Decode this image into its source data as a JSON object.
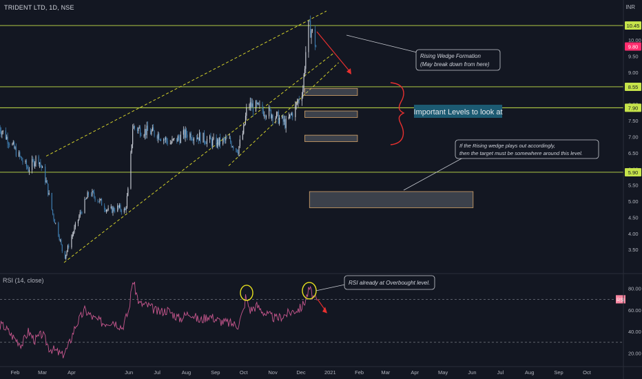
{
  "header": {
    "title": "TRIDENT LTD, 1D, NSE",
    "currency": "INR"
  },
  "chart_data": [
    {
      "type": "candlestick",
      "title": "TRIDENT LTD, 1D, NSE",
      "currency": "INR",
      "ylim": [
        2.8,
        10.9
      ],
      "y_ticks": [
        "3.50",
        "4.00",
        "4.50",
        "5.00",
        "5.50",
        "6.00",
        "6.50",
        "7.00",
        "7.50",
        "8.00",
        "8.50",
        "9.00",
        "9.50",
        "10.00"
      ],
      "x_labels": [
        "Feb",
        "Mar",
        "Apr",
        "Jun",
        "Jul",
        "Aug",
        "Sep",
        "Oct",
        "Nov",
        "Dec",
        "2021",
        "Feb",
        "Mar",
        "Apr",
        "May",
        "Jun",
        "Jul",
        "Aug",
        "Sep",
        "Oct"
      ],
      "price_markers": [
        {
          "label": "10.45",
          "value": 10.45,
          "color": "#c6e34a"
        },
        {
          "label": "9.80",
          "value": 9.8,
          "color": "#ff2d6e"
        },
        {
          "label": "8.55",
          "value": 8.55,
          "color": "#c6e34a"
        },
        {
          "label": "7.90",
          "value": 7.9,
          "color": "#c6e34a"
        },
        {
          "label": "5.90",
          "value": 5.9,
          "color": "#c6e34a"
        }
      ],
      "horizontal_levels": [
        10.45,
        8.55,
        7.9,
        5.9
      ],
      "close_series": [
        [
          "Jan 15",
          7.3
        ],
        [
          "Jan 25",
          6.9
        ],
        [
          "Feb 5",
          6.4
        ],
        [
          "Feb 15",
          6.0
        ],
        [
          "Feb 25",
          6.4
        ],
        [
          "Mar 5",
          5.6
        ],
        [
          "Mar 12",
          4.6
        ],
        [
          "Mar 19",
          3.9
        ],
        [
          "Mar 24",
          3.2
        ],
        [
          "Apr 1",
          3.9
        ],
        [
          "Apr 10",
          4.6
        ],
        [
          "Apr 20",
          5.3
        ],
        [
          "May 1",
          5.0
        ],
        [
          "May 10",
          4.7
        ],
        [
          "May 20",
          4.8
        ],
        [
          "May 28",
          4.7
        ],
        [
          "Jun 1",
          5.5
        ],
        [
          "Jun 5",
          7.3
        ],
        [
          "Jun 15",
          7.2
        ],
        [
          "Jul 1",
          7.1
        ],
        [
          "Jul 15",
          6.8
        ],
        [
          "Aug 1",
          7.1
        ],
        [
          "Aug 15",
          7.0
        ],
        [
          "Sep 1",
          6.8
        ],
        [
          "Sep 15",
          6.9
        ],
        [
          "Sep 25",
          6.6
        ],
        [
          "Oct 1",
          7.2
        ],
        [
          "Oct 5",
          8.0
        ],
        [
          "Oct 15",
          7.9
        ],
        [
          "Nov 1",
          7.7
        ],
        [
          "Nov 15",
          7.4
        ],
        [
          "Nov 25",
          7.9
        ],
        [
          "Dec 3",
          8.5
        ],
        [
          "Dec 8",
          10.4
        ],
        [
          "Dec 12",
          10.3
        ],
        [
          "Dec 17",
          9.8
        ]
      ],
      "trendlines": [
        {
          "name": "wedge-upper",
          "from": [
            "Mar 5",
            6.4
          ],
          "to": [
            "Dec 28",
            10.9
          ]
        },
        {
          "name": "wedge-lower",
          "from": [
            "Mar 24",
            3.1
          ],
          "to": [
            "Jan 5",
            9.6
          ]
        },
        {
          "name": "wedge-lower-2",
          "from": [
            "Sep 15",
            6.1
          ],
          "to": [
            "Jan 10",
            9.3
          ]
        }
      ],
      "annotations": {
        "wedge_line1": "Rising Wedge Formation",
        "wedge_line2": "(May break down from here)",
        "levels_label": "Important Levels to look at",
        "target_line1": "If the Rising wedge plays out accordingly,",
        "target_line2": "then the target must be somewhere around this level."
      },
      "zones": [
        {
          "from": [
            "Dec 5",
            8.28
          ],
          "to": [
            "Jan 30",
            8.5
          ]
        },
        {
          "from": [
            "Dec 5",
            7.6
          ],
          "to": [
            "Jan 30",
            7.8
          ]
        },
        {
          "from": [
            "Dec 5",
            6.85
          ],
          "to": [
            "Jan 30",
            7.05
          ]
        },
        {
          "from": [
            "Dec 10",
            4.8
          ],
          "to": [
            "Jun 1",
            5.3
          ]
        }
      ]
    },
    {
      "type": "line",
      "title": "RSI (14, close)",
      "ylim": [
        10,
        92
      ],
      "y_ticks": [
        "20.00",
        "40.00",
        "60.00",
        "80.00"
      ],
      "current_label": "RSI",
      "overbought": 70,
      "oversold": 30,
      "annotation": "RSI already at Overbought level.",
      "series": [
        {
          "name": "RSI",
          "values": [
            [
              "Jan 1",
              55
            ],
            [
              "Jan 10",
              48
            ],
            [
              "Jan 20",
              45
            ],
            [
              "Jan 30",
              35
            ],
            [
              "Feb 8",
              28
            ],
            [
              "Feb 15",
              40
            ],
            [
              "Feb 22",
              32
            ],
            [
              "Mar 1",
              38
            ],
            [
              "Mar 8",
              25
            ],
            [
              "Mar 15",
              22
            ],
            [
              "Mar 22",
              18
            ],
            [
              "Mar 28",
              25
            ],
            [
              "Apr 5",
              45
            ],
            [
              "Apr 15",
              60
            ],
            [
              "Apr 25",
              52
            ],
            [
              "May 5",
              48
            ],
            [
              "May 15",
              50
            ],
            [
              "May 25",
              44
            ],
            [
              "Jun 1",
              60
            ],
            [
              "Jun 5",
              88
            ],
            [
              "Jun 12",
              66
            ],
            [
              "Jun 22",
              64
            ],
            [
              "Jul 2",
              58
            ],
            [
              "Jul 12",
              60
            ],
            [
              "Jul 25",
              52
            ],
            [
              "Aug 5",
              58
            ],
            [
              "Aug 15",
              50
            ],
            [
              "Aug 25",
              55
            ],
            [
              "Sep 5",
              50
            ],
            [
              "Sep 15",
              48
            ],
            [
              "Sep 25",
              46
            ],
            [
              "Oct 1",
              60
            ],
            [
              "Oct 3",
              72
            ],
            [
              "Oct 8",
              60
            ],
            [
              "Oct 15",
              64
            ],
            [
              "Oct 25",
              56
            ],
            [
              "Nov 5",
              52
            ],
            [
              "Nov 15",
              56
            ],
            [
              "Nov 25",
              60
            ],
            [
              "Dec 1",
              62
            ],
            [
              "Dec 5",
              68
            ],
            [
              "Dec 10",
              80
            ],
            [
              "Dec 14",
              72
            ],
            [
              "Dec 18",
              68
            ]
          ]
        }
      ]
    }
  ]
}
